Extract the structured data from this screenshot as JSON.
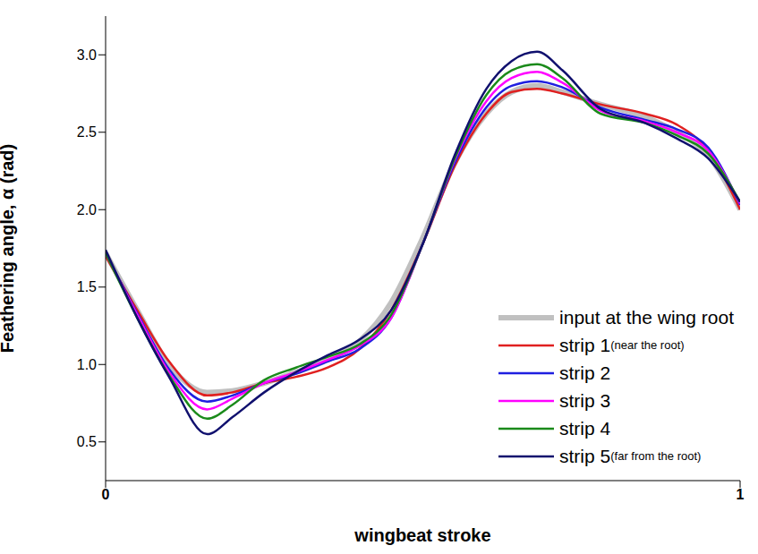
{
  "chart_data": {
    "type": "line",
    "x_label": "wingbeat stroke",
    "y_label": "Feathering angle, α (rad)",
    "x": [
      0,
      0.05,
      0.1,
      0.16,
      0.2,
      0.25,
      0.3,
      0.35,
      0.4,
      0.45,
      0.5,
      0.55,
      0.6,
      0.64,
      0.68,
      0.72,
      0.78,
      0.85,
      0.9,
      0.95,
      1
    ],
    "xlim": [
      0,
      1
    ],
    "xticks": [
      0,
      1
    ],
    "ylim": [
      0.25,
      3.25
    ],
    "yticks": [
      {
        "value": 0.5,
        "label": "0.5"
      },
      {
        "value": 1,
        "label": "1.0"
      },
      {
        "value": 1.5,
        "label": "1.5"
      },
      {
        "value": 2,
        "label": "2.0"
      },
      {
        "value": 2.5,
        "label": "2.5"
      },
      {
        "value": 3,
        "label": "3.0"
      }
    ],
    "grid": false,
    "legend": "lower right",
    "series": [
      {
        "name": "input at the wing root",
        "color": "#c0c0c0",
        "values": [
          1.72,
          1.35,
          1.0,
          0.82,
          0.83,
          0.88,
          0.95,
          1.03,
          1.15,
          1.4,
          1.82,
          2.3,
          2.62,
          2.76,
          2.8,
          2.76,
          2.68,
          2.6,
          2.5,
          2.35,
          2.0
        ]
      },
      {
        "name": "strip 1 (near the root)",
        "color": "#e02020",
        "values": [
          1.7,
          1.35,
          1.02,
          0.8,
          0.82,
          0.88,
          0.92,
          0.98,
          1.1,
          1.35,
          1.78,
          2.28,
          2.62,
          2.76,
          2.78,
          2.75,
          2.68,
          2.62,
          2.55,
          2.38,
          2.0
        ]
      },
      {
        "name": "strip 2",
        "color": "#1f1fe0",
        "values": [
          1.72,
          1.33,
          0.97,
          0.76,
          0.8,
          0.88,
          0.94,
          1.02,
          1.1,
          1.3,
          1.78,
          2.3,
          2.66,
          2.8,
          2.83,
          2.79,
          2.66,
          2.58,
          2.52,
          2.4,
          2.03
        ]
      },
      {
        "name": "strip 3",
        "color": "#ff00ff",
        "values": [
          1.72,
          1.32,
          0.95,
          0.71,
          0.78,
          0.88,
          0.95,
          1.03,
          1.12,
          1.3,
          1.78,
          2.32,
          2.7,
          2.85,
          2.89,
          2.82,
          2.64,
          2.57,
          2.5,
          2.38,
          2.04
        ]
      },
      {
        "name": "strip 4",
        "color": "#1a8a1a",
        "values": [
          1.72,
          1.3,
          0.93,
          0.65,
          0.74,
          0.9,
          0.98,
          1.05,
          1.13,
          1.32,
          1.78,
          2.33,
          2.74,
          2.9,
          2.94,
          2.85,
          2.62,
          2.56,
          2.48,
          2.36,
          2.05
        ]
      },
      {
        "name": "strip 5 (far from the root)",
        "color": "#10106e",
        "values": [
          1.74,
          1.3,
          0.92,
          0.55,
          0.66,
          0.82,
          0.95,
          1.06,
          1.16,
          1.35,
          1.78,
          2.35,
          2.78,
          2.96,
          3.02,
          2.9,
          2.65,
          2.56,
          2.46,
          2.33,
          2.05
        ]
      }
    ]
  }
}
